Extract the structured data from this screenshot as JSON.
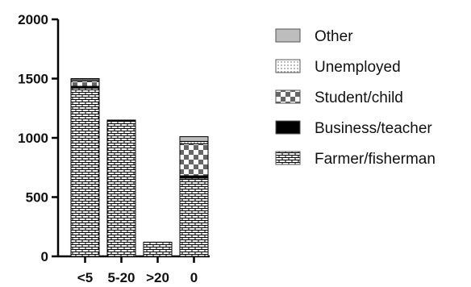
{
  "chart_data": {
    "type": "bar",
    "stacked": true,
    "title": "",
    "xlabel": "",
    "ylabel": "",
    "categories": [
      "<5",
      "5-20",
      ">20",
      "0"
    ],
    "ylim": [
      0,
      2000
    ],
    "yticks": [
      0,
      500,
      1000,
      1500,
      2000
    ],
    "ytick_labels": [
      "0",
      "500",
      "1000",
      "1500",
      "2000"
    ],
    "grid": false,
    "legend_position": "right",
    "series": [
      {
        "name": "Farmer/fisherman",
        "values": [
          1420,
          1140,
          120,
          660
        ],
        "pattern": "brick",
        "color": "#000000"
      },
      {
        "name": "Business/teacher",
        "values": [
          15,
          10,
          0,
          20
        ],
        "pattern": "solid",
        "color": "#000000"
      },
      {
        "name": "Student/child",
        "values": [
          45,
          0,
          0,
          270
        ],
        "pattern": "checker",
        "color": "#555555"
      },
      {
        "name": "Unemployed",
        "values": [
          10,
          0,
          0,
          20
        ],
        "pattern": "dots",
        "color": "#888888"
      },
      {
        "name": "Other",
        "values": [
          10,
          0,
          0,
          40
        ],
        "pattern": "solid",
        "color": "#bdbdbd"
      }
    ],
    "legend_order": [
      "Other",
      "Unemployed",
      "Student/child",
      "Business/teacher",
      "Farmer/fisherman"
    ]
  }
}
